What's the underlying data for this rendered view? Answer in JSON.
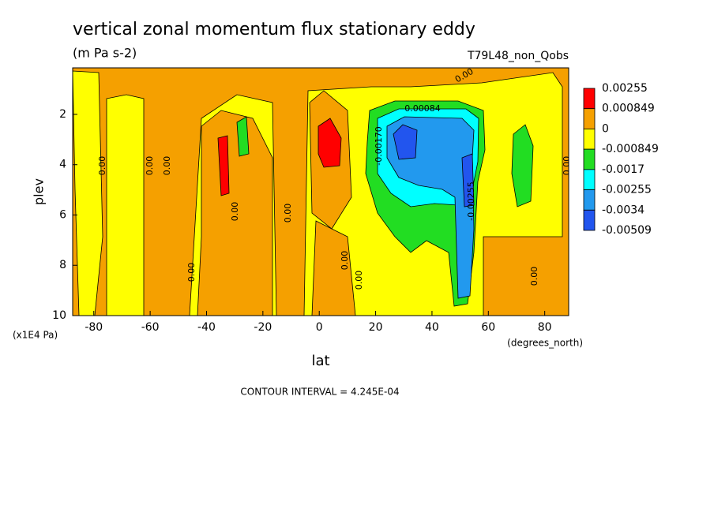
{
  "chart_data": {
    "type": "contour",
    "title": "vertical zonal momentum flux stationary eddy",
    "subtitle": "(m Pa s-2)",
    "dataset": "T79L48_non_Qobs",
    "x_label": "lat",
    "y_label": "plev",
    "x_units": "(degrees_north)",
    "y_units": "(x1E4 Pa)",
    "note": "CONTOUR INTERVAL = 4.245E-04",
    "xlim": [
      -87.5,
      88.5
    ],
    "xticks": [
      -80,
      -60,
      -40,
      -20,
      0,
      20,
      40,
      60,
      80
    ],
    "ylim": [
      10,
      0.15
    ],
    "yticks": [
      2,
      4,
      6,
      8,
      10
    ],
    "colorbar": {
      "levels": [
        0.00255,
        0.000849,
        0,
        -0.000849,
        -0.0017,
        -0.00255,
        -0.0034,
        -0.00509
      ],
      "colors": [
        "#ff0000",
        "#f5a000",
        "#ffff00",
        "#22dd22",
        "#00ffff",
        "#2299ee",
        "#2255ee"
      ]
    },
    "contour_labels": [
      "0.00",
      "0.00",
      "0.00",
      "0.00",
      "0.00",
      "0.00",
      "0.00",
      "0.00",
      "0.00",
      "0.00",
      "0.00",
      "0.00084",
      "-0.00170",
      "-0.00255"
    ]
  }
}
